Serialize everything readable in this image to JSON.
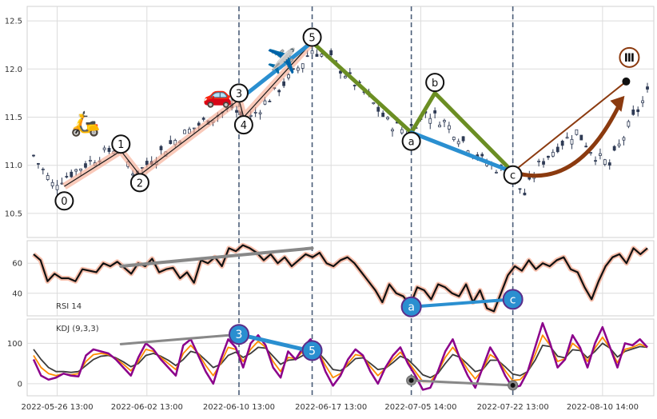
{
  "chart_data": [
    {
      "type": "candlestick",
      "panel": "price",
      "yticks": [
        "12.5",
        "12.0",
        "11.5",
        "11.0",
        "10.5"
      ],
      "ylim": [
        10.25,
        12.65
      ],
      "grid": true,
      "xticks": [
        "2022-05-26 13:00",
        "2022-06-02 13:00",
        "2022-06-10 13:00",
        "2022-06-17 13:00",
        "2022-07-05 14:00",
        "2022-07-22 13:00",
        "2022-08-10 14:00"
      ],
      "xrange_index": [
        0,
        240
      ],
      "xtick_index": [
        10,
        48,
        87,
        126,
        164,
        203,
        241
      ],
      "vlines_index": [
        87,
        118,
        160,
        203
      ],
      "candles_keypoints": [
        {
          "i": 0,
          "v": 11.1
        },
        {
          "i": 8,
          "v": 10.8
        },
        {
          "i": 18,
          "v": 10.95
        },
        {
          "i": 28,
          "v": 11.1
        },
        {
          "i": 36,
          "v": 11.2
        },
        {
          "i": 43,
          "v": 10.9
        },
        {
          "i": 52,
          "v": 11.1
        },
        {
          "i": 62,
          "v": 11.3
        },
        {
          "i": 72,
          "v": 11.45
        },
        {
          "i": 84,
          "v": 11.6
        },
        {
          "i": 90,
          "v": 11.45
        },
        {
          "i": 100,
          "v": 11.7
        },
        {
          "i": 110,
          "v": 11.95
        },
        {
          "i": 118,
          "v": 12.2
        },
        {
          "i": 126,
          "v": 12.1
        },
        {
          "i": 134,
          "v": 11.9
        },
        {
          "i": 142,
          "v": 11.7
        },
        {
          "i": 150,
          "v": 11.45
        },
        {
          "i": 158,
          "v": 11.35
        },
        {
          "i": 166,
          "v": 11.55
        },
        {
          "i": 174,
          "v": 11.45
        },
        {
          "i": 182,
          "v": 11.25
        },
        {
          "i": 190,
          "v": 11.05
        },
        {
          "i": 198,
          "v": 10.95
        },
        {
          "i": 203,
          "v": 10.85
        },
        {
          "i": 208,
          "v": 10.7
        },
        {
          "i": 214,
          "v": 11.0
        },
        {
          "i": 222,
          "v": 11.2
        },
        {
          "i": 230,
          "v": 11.35
        },
        {
          "i": 238,
          "v": 11.1
        },
        {
          "i": 244,
          "v": 11.0
        },
        {
          "i": 252,
          "v": 11.4
        },
        {
          "i": 260,
          "v": 11.75
        }
      ],
      "wave_points": [
        {
          "label": "0",
          "i": 13,
          "v": 10.78,
          "label_v": 10.63
        },
        {
          "label": "1",
          "i": 37,
          "v": 11.15,
          "label_v": 11.22
        },
        {
          "label": "2",
          "i": 45,
          "v": 10.9,
          "label_v": 10.82
        },
        {
          "label": "3",
          "i": 87,
          "v": 11.68,
          "label_v": 11.75
        },
        {
          "label": "4",
          "i": 89,
          "v": 11.5,
          "label_v": 11.42
        },
        {
          "label": "5",
          "i": 118,
          "v": 12.28,
          "label_v": 12.33
        },
        {
          "label": "a",
          "i": 160,
          "v": 11.34,
          "label_v": 11.25
        },
        {
          "label": "b",
          "i": 170,
          "v": 11.75,
          "label_v": 11.86
        },
        {
          "label": "c",
          "i": 203,
          "v": 10.93,
          "label_v": 10.9
        }
      ],
      "abc_lines": [
        {
          "from": "5",
          "to": "a",
          "color": "#6b8e23"
        },
        {
          "from": "a",
          "to": "b",
          "color": "#6b8e23"
        },
        {
          "from": "b",
          "to": "c",
          "color": "#6b8e23"
        },
        {
          "from": "a",
          "to": "c",
          "color": "#2a8fd0"
        },
        {
          "from": "3",
          "to": "5",
          "color": "#2a8fd0"
        }
      ],
      "projection": {
        "label": "Ⅲ",
        "from_i": 203,
        "from_v": 10.93,
        "to_i": 251,
        "to_v": 11.87,
        "label_v": 12.12,
        "color": "#8b3a0f"
      },
      "emoji": [
        {
          "char": "🛵",
          "i": 22,
          "v": 11.35
        },
        {
          "char": "🚗",
          "i": 78,
          "v": 11.65
        },
        {
          "char": "✈️",
          "i": 105,
          "v": 12.0
        }
      ]
    },
    {
      "type": "line",
      "panel": "rsi",
      "label": "RSI 14",
      "yticks": [
        "60",
        "40"
      ],
      "ylim": [
        25,
        75
      ],
      "series": [
        {
          "values": [
            66,
            62,
            48,
            53,
            50,
            50,
            48,
            56,
            55,
            54,
            60,
            58,
            61,
            57,
            53,
            60,
            58,
            63,
            54,
            56,
            57,
            50,
            54,
            47,
            62,
            60,
            64,
            58,
            70,
            68,
            72,
            70,
            67,
            62,
            66,
            60,
            64,
            58,
            62,
            66,
            64,
            67,
            60,
            58,
            62,
            64,
            60,
            54,
            48,
            42,
            34,
            46,
            40,
            38,
            32,
            44,
            42,
            36,
            46,
            44,
            40,
            38,
            46,
            34,
            42,
            30,
            28,
            40,
            52,
            58,
            55,
            62,
            56,
            60,
            58,
            62,
            64,
            56,
            54,
            44,
            36,
            48,
            58,
            64,
            66,
            60,
            70,
            66,
            70
          ]
        }
      ],
      "divergence_lines": [
        {
          "from_i": 37,
          "from_v": 58,
          "to_i": 118,
          "to_v": 70,
          "color": "#888888"
        },
        {
          "from_i": 160,
          "from_v": 31,
          "to_i": 203,
          "to_v": 36,
          "color": "#2a8fd0"
        }
      ],
      "markers": [
        {
          "label": "a",
          "i": 160,
          "v": 31
        },
        {
          "label": "c",
          "i": 203,
          "v": 36
        }
      ]
    },
    {
      "type": "line",
      "panel": "kdj",
      "label": "KDJ (9,3,3)",
      "yticks": [
        "100",
        "0"
      ],
      "ylim": [
        -30,
        160
      ],
      "series": [
        {
          "name": "J",
          "color": "#8b008b",
          "values": [
            60,
            20,
            10,
            15,
            25,
            20,
            18,
            70,
            85,
            80,
            75,
            60,
            40,
            20,
            65,
            100,
            85,
            60,
            40,
            20,
            95,
            110,
            70,
            30,
            0,
            60,
            110,
            90,
            40,
            100,
            120,
            95,
            40,
            15,
            80,
            60,
            90,
            110,
            80,
            30,
            -5,
            20,
            60,
            85,
            70,
            30,
            0,
            40,
            70,
            90,
            50,
            20,
            -15,
            -10,
            30,
            80,
            110,
            60,
            20,
            -10,
            40,
            90,
            60,
            20,
            -10,
            -5,
            30,
            90,
            150,
            100,
            40,
            60,
            120,
            90,
            40,
            100,
            140,
            90,
            40,
            100,
            95,
            110,
            90
          ]
        },
        {
          "name": "D",
          "color": "#ff8c00",
          "values": [
            70,
            40,
            25,
            20,
            25,
            22,
            25,
            55,
            72,
            75,
            72,
            62,
            48,
            32,
            55,
            85,
            80,
            65,
            50,
            35,
            75,
            95,
            75,
            45,
            20,
            50,
            90,
            85,
            55,
            85,
            105,
            90,
            55,
            30,
            65,
            62,
            80,
            95,
            80,
            45,
            15,
            25,
            50,
            72,
            68,
            42,
            20,
            38,
            60,
            78,
            55,
            30,
            5,
            5,
            28,
            65,
            90,
            65,
            35,
            12,
            35,
            72,
            60,
            32,
            8,
            10,
            30,
            72,
            120,
            95,
            55,
            62,
            100,
            85,
            55,
            88,
            115,
            88,
            52,
            85,
            90,
            98,
            90
          ]
        },
        {
          "name": "K",
          "color": "#3c3c3c",
          "values": [
            85,
            60,
            40,
            30,
            30,
            28,
            30,
            45,
            60,
            68,
            70,
            64,
            54,
            42,
            50,
            70,
            75,
            68,
            58,
            45,
            60,
            80,
            75,
            58,
            40,
            48,
            70,
            78,
            65,
            75,
            90,
            88,
            68,
            48,
            58,
            60,
            70,
            82,
            78,
            58,
            35,
            32,
            45,
            62,
            64,
            50,
            35,
            38,
            52,
            68,
            60,
            42,
            22,
            15,
            25,
            50,
            72,
            65,
            48,
            30,
            35,
            58,
            58,
            42,
            24,
            20,
            30,
            58,
            95,
            92,
            68,
            64,
            84,
            82,
            64,
            80,
            100,
            88,
            66,
            80,
            86,
            92,
            90
          ]
        }
      ],
      "divergence_lines": [
        {
          "from_i": 37,
          "from_v": 98,
          "to_i": 87,
          "to_v": 122,
          "color": "#888888"
        },
        {
          "from_i": 87,
          "from_v": 122,
          "to_i": 118,
          "to_v": 80,
          "color": "#2a8fd0"
        },
        {
          "from_i": 160,
          "from_v": 8,
          "to_i": 203,
          "to_v": -4,
          "color": "#888888"
        }
      ],
      "markers": [
        {
          "label": "3",
          "i": 87,
          "v": 122
        },
        {
          "label": "5",
          "i": 118,
          "v": 82
        }
      ]
    }
  ]
}
